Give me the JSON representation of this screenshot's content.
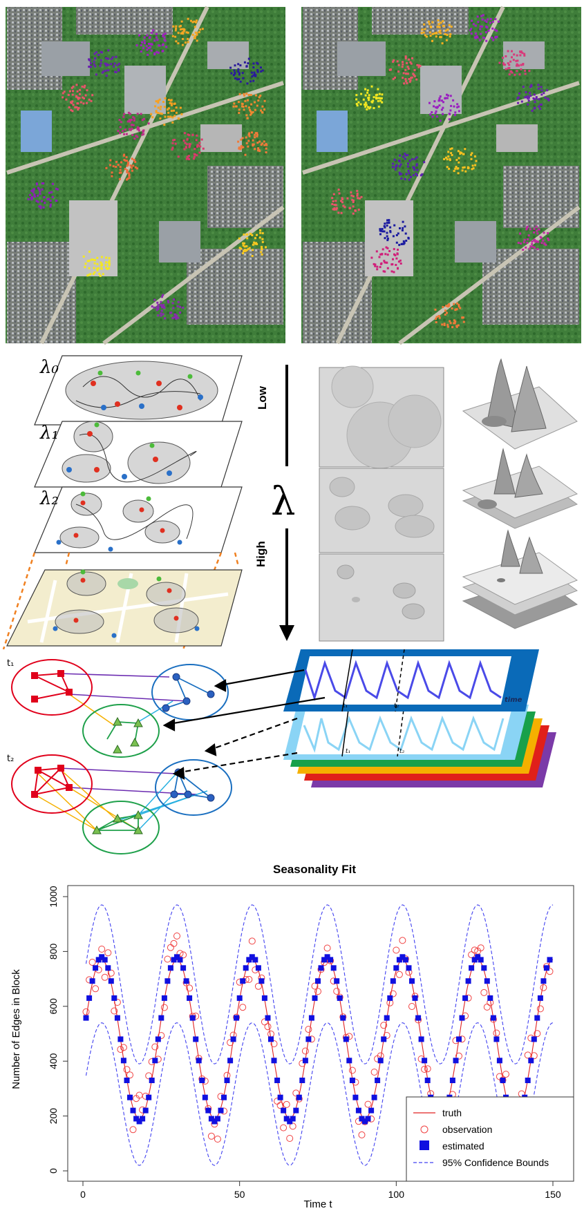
{
  "maps": {
    "left_clusters": [
      {
        "color": "#8e1fb8",
        "cx": 60,
        "cy": 280
      },
      {
        "color": "#6a1fb0",
        "cx": 150,
        "cy": 90
      },
      {
        "color": "#a020c0",
        "cx": 220,
        "cy": 60
      },
      {
        "color": "#f5a623",
        "cx": 270,
        "cy": 45
      },
      {
        "color": "#2a1a9a",
        "cx": 355,
        "cy": 100
      },
      {
        "color": "#e8556a",
        "cx": 110,
        "cy": 140
      },
      {
        "color": "#c02a8a",
        "cx": 190,
        "cy": 180
      },
      {
        "color": "#f8a020",
        "cx": 240,
        "cy": 160
      },
      {
        "color": "#f08830",
        "cx": 360,
        "cy": 150
      },
      {
        "color": "#d83a6a",
        "cx": 270,
        "cy": 210
      },
      {
        "color": "#ef6a3a",
        "cx": 175,
        "cy": 240
      },
      {
        "color": "#f07a3a",
        "cx": 365,
        "cy": 210
      },
      {
        "color": "#f4e820",
        "cx": 135,
        "cy": 380
      },
      {
        "color": "#f8c820",
        "cx": 365,
        "cy": 350
      },
      {
        "color": "#8a2ab0",
        "cx": 240,
        "cy": 445
      }
    ],
    "right_clusters": [
      {
        "color": "#f8b020",
        "cx": 630,
        "cy": 45
      },
      {
        "color": "#a020c0",
        "cx": 700,
        "cy": 40
      },
      {
        "color": "#e8556a",
        "cx": 585,
        "cy": 100
      },
      {
        "color": "#d83a7a",
        "cx": 745,
        "cy": 90
      },
      {
        "color": "#f4e820",
        "cx": 530,
        "cy": 140
      },
      {
        "color": "#9a20c0",
        "cx": 640,
        "cy": 155
      },
      {
        "color": "#6a1fb0",
        "cx": 770,
        "cy": 140
      },
      {
        "color": "#f6c020",
        "cx": 665,
        "cy": 230
      },
      {
        "color": "#5a1fb0",
        "cx": 590,
        "cy": 240
      },
      {
        "color": "#e8556a",
        "cx": 500,
        "cy": 290
      },
      {
        "color": "#1a1aa0",
        "cx": 570,
        "cy": 335
      },
      {
        "color": "#c02aa0",
        "cx": 770,
        "cy": 345
      },
      {
        "color": "#d0207a",
        "cx": 560,
        "cy": 375
      },
      {
        "color": "#f07a3a",
        "cx": 650,
        "cy": 455
      }
    ]
  },
  "layers": {
    "labels": [
      "λ₀",
      "λ₁",
      "λ₂"
    ],
    "axis_symbol": "λ",
    "low_label": "Low",
    "high_label": "High"
  },
  "network": {
    "t1_label": "t₁",
    "t2_label": "t₂",
    "time_label": "time",
    "tick1": "t₁",
    "tick2": "t₂",
    "colors": {
      "red": "#e0001b",
      "blue": "#1a6fc0",
      "green": "#1ea04a",
      "stack": [
        "#7b3aa8",
        "#e0201a",
        "#f5b000",
        "#18a04a",
        "#8ad4f5",
        "#0a6ab8"
      ]
    }
  },
  "chart_data": {
    "type": "line",
    "title": "Seasonality Fit",
    "xlabel": "Time t",
    "ylabel": "Number of Edges in Block",
    "xlim": [
      0,
      150
    ],
    "ylim": [
      0,
      1000
    ],
    "xticks": [
      0,
      50,
      100,
      150
    ],
    "yticks": [
      0,
      200,
      400,
      600,
      800,
      1000
    ],
    "period": 24,
    "truth": {
      "mean": 480,
      "amplitude": 290
    },
    "estimated": {
      "mean": 480,
      "amplitude": 300
    },
    "bounds": {
      "upper_mean": 680,
      "upper_amplitude": 290,
      "lower_mean": 280,
      "lower_amplitude": 260
    },
    "legend_position": "bottom-right",
    "legend": [
      "truth",
      "observation",
      "estimated",
      "95% Confidence Bounds"
    ],
    "series_colors": {
      "truth": "#e02020",
      "observation": "#f04040",
      "estimated": "#1010e0",
      "bounds": "#4040f0"
    }
  }
}
